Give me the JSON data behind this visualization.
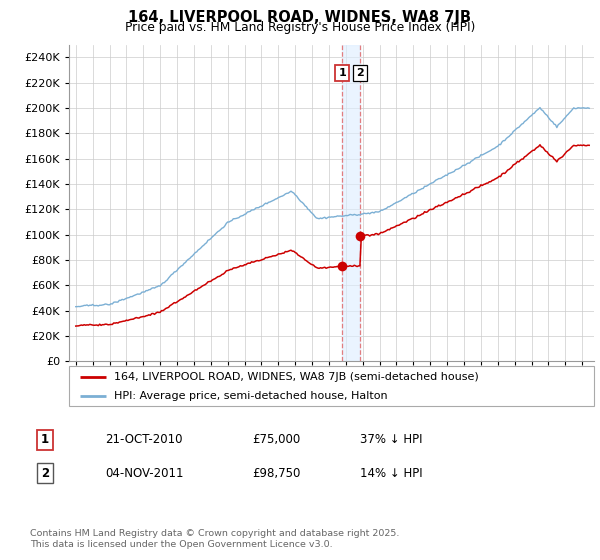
{
  "title": "164, LIVERPOOL ROAD, WIDNES, WA8 7JB",
  "subtitle": "Price paid vs. HM Land Registry's House Price Index (HPI)",
  "ylim": [
    0,
    250000
  ],
  "yticks": [
    0,
    20000,
    40000,
    60000,
    80000,
    100000,
    120000,
    140000,
    160000,
    180000,
    200000,
    220000,
    240000
  ],
  "hpi_color": "#7bafd4",
  "price_color": "#cc0000",
  "legend_label_red": "164, LIVERPOOL ROAD, WIDNES, WA8 7JB (semi-detached house)",
  "legend_label_blue": "HPI: Average price, semi-detached house, Halton",
  "annotation1_date": "21-OCT-2010",
  "annotation1_price": "£75,000",
  "annotation1_hpi": "37% ↓ HPI",
  "annotation2_date": "04-NOV-2011",
  "annotation2_price": "£98,750",
  "annotation2_hpi": "14% ↓ HPI",
  "footnote": "Contains HM Land Registry data © Crown copyright and database right 2025.\nThis data is licensed under the Open Government Licence v3.0.",
  "background_color": "#ffffff",
  "grid_color": "#cccccc",
  "purchase1_year": 2010.8,
  "purchase1_price": 75000,
  "purchase2_year": 2011.85,
  "purchase2_price": 98750
}
